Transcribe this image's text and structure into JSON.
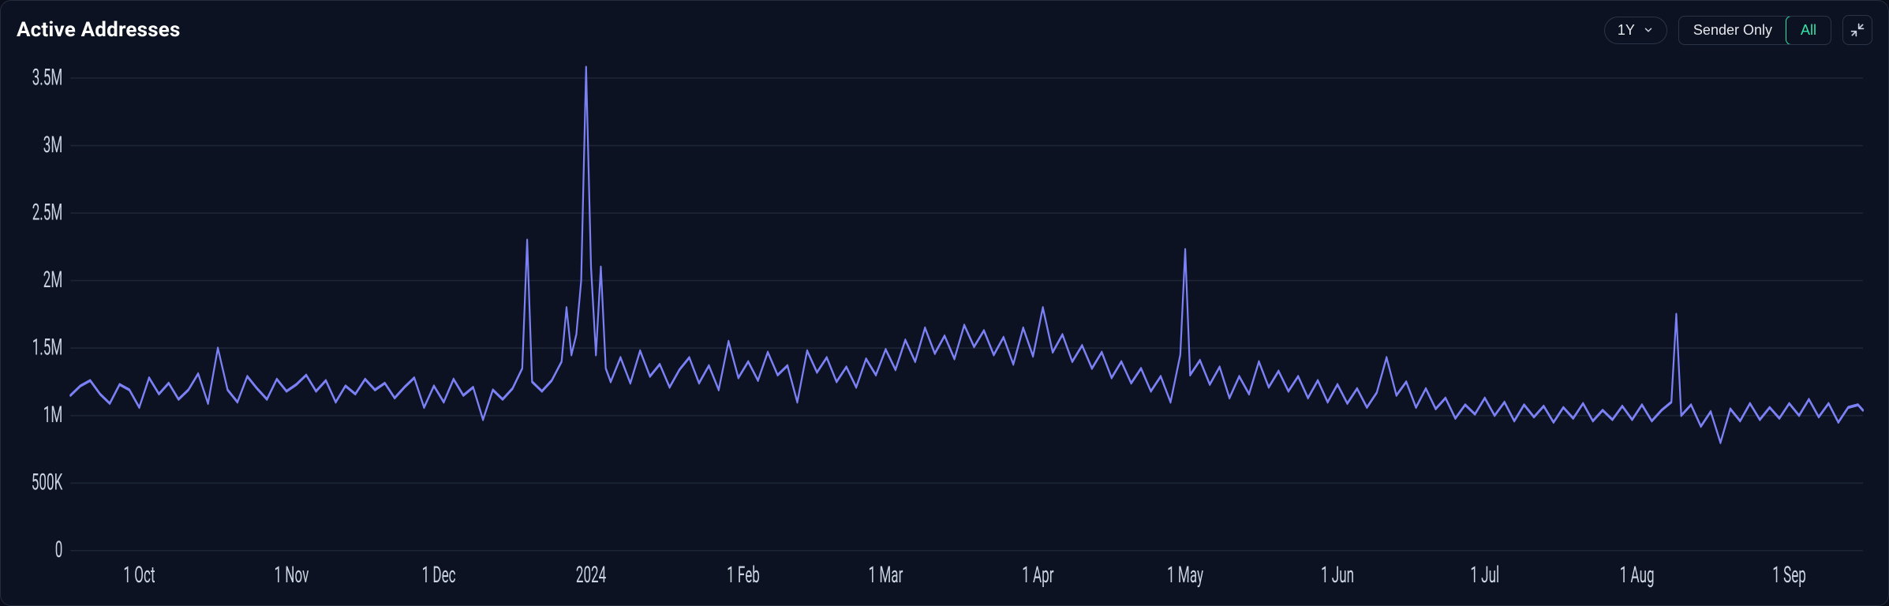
{
  "title": "Active Addresses",
  "controls": {
    "range_label": "1Y",
    "segments": {
      "sender_only": "Sender Only",
      "all": "All"
    },
    "active_segment": "all"
  },
  "chart": {
    "type": "line",
    "background_color": "#0c1221",
    "grid_color": "#1c2536",
    "line_color": "#7b81f4",
    "line_width": 2.2,
    "axis_label_color": "#cbd5e1",
    "axis_fontsize": 17,
    "ylim": [
      0,
      3600000
    ],
    "yticks": [
      {
        "v": 0,
        "label": "0"
      },
      {
        "v": 500000,
        "label": "500K"
      },
      {
        "v": 1000000,
        "label": "1M"
      },
      {
        "v": 1500000,
        "label": "1.5M"
      },
      {
        "v": 2000000,
        "label": "2M"
      },
      {
        "v": 2500000,
        "label": "2.5M"
      },
      {
        "v": 3000000,
        "label": "3M"
      },
      {
        "v": 3500000,
        "label": "3.5M"
      }
    ],
    "xlim": [
      0,
      365
    ],
    "xticks": [
      {
        "v": 14,
        "label": "1 Oct"
      },
      {
        "v": 45,
        "label": "1 Nov"
      },
      {
        "v": 75,
        "label": "1 Dec"
      },
      {
        "v": 106,
        "label": "2024"
      },
      {
        "v": 137,
        "label": "1 Feb"
      },
      {
        "v": 166,
        "label": "1 Mar"
      },
      {
        "v": 197,
        "label": "1 Apr"
      },
      {
        "v": 227,
        "label": "1 May"
      },
      {
        "v": 258,
        "label": "1 Jun"
      },
      {
        "v": 288,
        "label": "1 Jul"
      },
      {
        "v": 319,
        "label": "1 Aug"
      },
      {
        "v": 350,
        "label": "1 Sep"
      }
    ],
    "series": [
      {
        "x": 0,
        "y": 1150000
      },
      {
        "x": 2,
        "y": 1220000
      },
      {
        "x": 4,
        "y": 1260000
      },
      {
        "x": 6,
        "y": 1160000
      },
      {
        "x": 8,
        "y": 1090000
      },
      {
        "x": 10,
        "y": 1230000
      },
      {
        "x": 12,
        "y": 1190000
      },
      {
        "x": 14,
        "y": 1060000
      },
      {
        "x": 16,
        "y": 1280000
      },
      {
        "x": 18,
        "y": 1160000
      },
      {
        "x": 20,
        "y": 1240000
      },
      {
        "x": 22,
        "y": 1120000
      },
      {
        "x": 24,
        "y": 1190000
      },
      {
        "x": 26,
        "y": 1310000
      },
      {
        "x": 28,
        "y": 1090000
      },
      {
        "x": 30,
        "y": 1500000
      },
      {
        "x": 32,
        "y": 1190000
      },
      {
        "x": 34,
        "y": 1100000
      },
      {
        "x": 36,
        "y": 1290000
      },
      {
        "x": 38,
        "y": 1200000
      },
      {
        "x": 40,
        "y": 1120000
      },
      {
        "x": 42,
        "y": 1270000
      },
      {
        "x": 44,
        "y": 1180000
      },
      {
        "x": 46,
        "y": 1230000
      },
      {
        "x": 48,
        "y": 1300000
      },
      {
        "x": 50,
        "y": 1180000
      },
      {
        "x": 52,
        "y": 1260000
      },
      {
        "x": 54,
        "y": 1100000
      },
      {
        "x": 56,
        "y": 1220000
      },
      {
        "x": 58,
        "y": 1160000
      },
      {
        "x": 60,
        "y": 1270000
      },
      {
        "x": 62,
        "y": 1190000
      },
      {
        "x": 64,
        "y": 1240000
      },
      {
        "x": 66,
        "y": 1130000
      },
      {
        "x": 68,
        "y": 1210000
      },
      {
        "x": 70,
        "y": 1280000
      },
      {
        "x": 72,
        "y": 1060000
      },
      {
        "x": 74,
        "y": 1220000
      },
      {
        "x": 76,
        "y": 1100000
      },
      {
        "x": 78,
        "y": 1270000
      },
      {
        "x": 80,
        "y": 1150000
      },
      {
        "x": 82,
        "y": 1210000
      },
      {
        "x": 84,
        "y": 970000
      },
      {
        "x": 86,
        "y": 1190000
      },
      {
        "x": 88,
        "y": 1120000
      },
      {
        "x": 90,
        "y": 1200000
      },
      {
        "x": 92,
        "y": 1350000
      },
      {
        "x": 93,
        "y": 2300000
      },
      {
        "x": 94,
        "y": 1250000
      },
      {
        "x": 96,
        "y": 1180000
      },
      {
        "x": 98,
        "y": 1260000
      },
      {
        "x": 100,
        "y": 1400000
      },
      {
        "x": 101,
        "y": 1800000
      },
      {
        "x": 102,
        "y": 1450000
      },
      {
        "x": 103,
        "y": 1600000
      },
      {
        "x": 104,
        "y": 2000000
      },
      {
        "x": 105,
        "y": 3580000
      },
      {
        "x": 106,
        "y": 2100000
      },
      {
        "x": 107,
        "y": 1450000
      },
      {
        "x": 108,
        "y": 2100000
      },
      {
        "x": 109,
        "y": 1350000
      },
      {
        "x": 110,
        "y": 1250000
      },
      {
        "x": 112,
        "y": 1430000
      },
      {
        "x": 114,
        "y": 1240000
      },
      {
        "x": 116,
        "y": 1480000
      },
      {
        "x": 118,
        "y": 1290000
      },
      {
        "x": 120,
        "y": 1380000
      },
      {
        "x": 122,
        "y": 1210000
      },
      {
        "x": 124,
        "y": 1340000
      },
      {
        "x": 126,
        "y": 1430000
      },
      {
        "x": 128,
        "y": 1240000
      },
      {
        "x": 130,
        "y": 1370000
      },
      {
        "x": 132,
        "y": 1190000
      },
      {
        "x": 134,
        "y": 1550000
      },
      {
        "x": 136,
        "y": 1280000
      },
      {
        "x": 138,
        "y": 1400000
      },
      {
        "x": 140,
        "y": 1260000
      },
      {
        "x": 142,
        "y": 1470000
      },
      {
        "x": 144,
        "y": 1300000
      },
      {
        "x": 146,
        "y": 1370000
      },
      {
        "x": 148,
        "y": 1100000
      },
      {
        "x": 150,
        "y": 1480000
      },
      {
        "x": 152,
        "y": 1320000
      },
      {
        "x": 154,
        "y": 1430000
      },
      {
        "x": 156,
        "y": 1250000
      },
      {
        "x": 158,
        "y": 1360000
      },
      {
        "x": 160,
        "y": 1210000
      },
      {
        "x": 162,
        "y": 1420000
      },
      {
        "x": 164,
        "y": 1300000
      },
      {
        "x": 166,
        "y": 1490000
      },
      {
        "x": 168,
        "y": 1340000
      },
      {
        "x": 170,
        "y": 1560000
      },
      {
        "x": 172,
        "y": 1400000
      },
      {
        "x": 174,
        "y": 1650000
      },
      {
        "x": 176,
        "y": 1460000
      },
      {
        "x": 178,
        "y": 1590000
      },
      {
        "x": 180,
        "y": 1420000
      },
      {
        "x": 182,
        "y": 1670000
      },
      {
        "x": 184,
        "y": 1510000
      },
      {
        "x": 186,
        "y": 1630000
      },
      {
        "x": 188,
        "y": 1450000
      },
      {
        "x": 190,
        "y": 1580000
      },
      {
        "x": 192,
        "y": 1380000
      },
      {
        "x": 194,
        "y": 1650000
      },
      {
        "x": 196,
        "y": 1440000
      },
      {
        "x": 198,
        "y": 1800000
      },
      {
        "x": 200,
        "y": 1470000
      },
      {
        "x": 202,
        "y": 1600000
      },
      {
        "x": 204,
        "y": 1400000
      },
      {
        "x": 206,
        "y": 1520000
      },
      {
        "x": 208,
        "y": 1350000
      },
      {
        "x": 210,
        "y": 1470000
      },
      {
        "x": 212,
        "y": 1280000
      },
      {
        "x": 214,
        "y": 1400000
      },
      {
        "x": 216,
        "y": 1240000
      },
      {
        "x": 218,
        "y": 1350000
      },
      {
        "x": 220,
        "y": 1180000
      },
      {
        "x": 222,
        "y": 1290000
      },
      {
        "x": 224,
        "y": 1100000
      },
      {
        "x": 226,
        "y": 1450000
      },
      {
        "x": 227,
        "y": 2230000
      },
      {
        "x": 228,
        "y": 1300000
      },
      {
        "x": 230,
        "y": 1410000
      },
      {
        "x": 232,
        "y": 1230000
      },
      {
        "x": 234,
        "y": 1360000
      },
      {
        "x": 236,
        "y": 1130000
      },
      {
        "x": 238,
        "y": 1290000
      },
      {
        "x": 240,
        "y": 1160000
      },
      {
        "x": 242,
        "y": 1400000
      },
      {
        "x": 244,
        "y": 1210000
      },
      {
        "x": 246,
        "y": 1330000
      },
      {
        "x": 248,
        "y": 1180000
      },
      {
        "x": 250,
        "y": 1290000
      },
      {
        "x": 252,
        "y": 1130000
      },
      {
        "x": 254,
        "y": 1260000
      },
      {
        "x": 256,
        "y": 1100000
      },
      {
        "x": 258,
        "y": 1230000
      },
      {
        "x": 260,
        "y": 1090000
      },
      {
        "x": 262,
        "y": 1200000
      },
      {
        "x": 264,
        "y": 1060000
      },
      {
        "x": 266,
        "y": 1170000
      },
      {
        "x": 268,
        "y": 1430000
      },
      {
        "x": 270,
        "y": 1150000
      },
      {
        "x": 272,
        "y": 1250000
      },
      {
        "x": 274,
        "y": 1060000
      },
      {
        "x": 276,
        "y": 1200000
      },
      {
        "x": 278,
        "y": 1050000
      },
      {
        "x": 280,
        "y": 1130000
      },
      {
        "x": 282,
        "y": 980000
      },
      {
        "x": 284,
        "y": 1080000
      },
      {
        "x": 286,
        "y": 1010000
      },
      {
        "x": 288,
        "y": 1130000
      },
      {
        "x": 290,
        "y": 1000000
      },
      {
        "x": 292,
        "y": 1100000
      },
      {
        "x": 294,
        "y": 960000
      },
      {
        "x": 296,
        "y": 1080000
      },
      {
        "x": 298,
        "y": 990000
      },
      {
        "x": 300,
        "y": 1070000
      },
      {
        "x": 302,
        "y": 950000
      },
      {
        "x": 304,
        "y": 1060000
      },
      {
        "x": 306,
        "y": 980000
      },
      {
        "x": 308,
        "y": 1090000
      },
      {
        "x": 310,
        "y": 960000
      },
      {
        "x": 312,
        "y": 1040000
      },
      {
        "x": 314,
        "y": 970000
      },
      {
        "x": 316,
        "y": 1070000
      },
      {
        "x": 318,
        "y": 970000
      },
      {
        "x": 320,
        "y": 1080000
      },
      {
        "x": 322,
        "y": 960000
      },
      {
        "x": 324,
        "y": 1040000
      },
      {
        "x": 326,
        "y": 1100000
      },
      {
        "x": 327,
        "y": 1750000
      },
      {
        "x": 328,
        "y": 1000000
      },
      {
        "x": 330,
        "y": 1080000
      },
      {
        "x": 332,
        "y": 920000
      },
      {
        "x": 334,
        "y": 1030000
      },
      {
        "x": 336,
        "y": 800000
      },
      {
        "x": 338,
        "y": 1050000
      },
      {
        "x": 340,
        "y": 960000
      },
      {
        "x": 342,
        "y": 1090000
      },
      {
        "x": 344,
        "y": 970000
      },
      {
        "x": 346,
        "y": 1060000
      },
      {
        "x": 348,
        "y": 980000
      },
      {
        "x": 350,
        "y": 1090000
      },
      {
        "x": 352,
        "y": 1000000
      },
      {
        "x": 354,
        "y": 1120000
      },
      {
        "x": 356,
        "y": 990000
      },
      {
        "x": 358,
        "y": 1090000
      },
      {
        "x": 360,
        "y": 950000
      },
      {
        "x": 362,
        "y": 1060000
      },
      {
        "x": 364,
        "y": 1080000
      },
      {
        "x": 365,
        "y": 1040000
      }
    ]
  }
}
